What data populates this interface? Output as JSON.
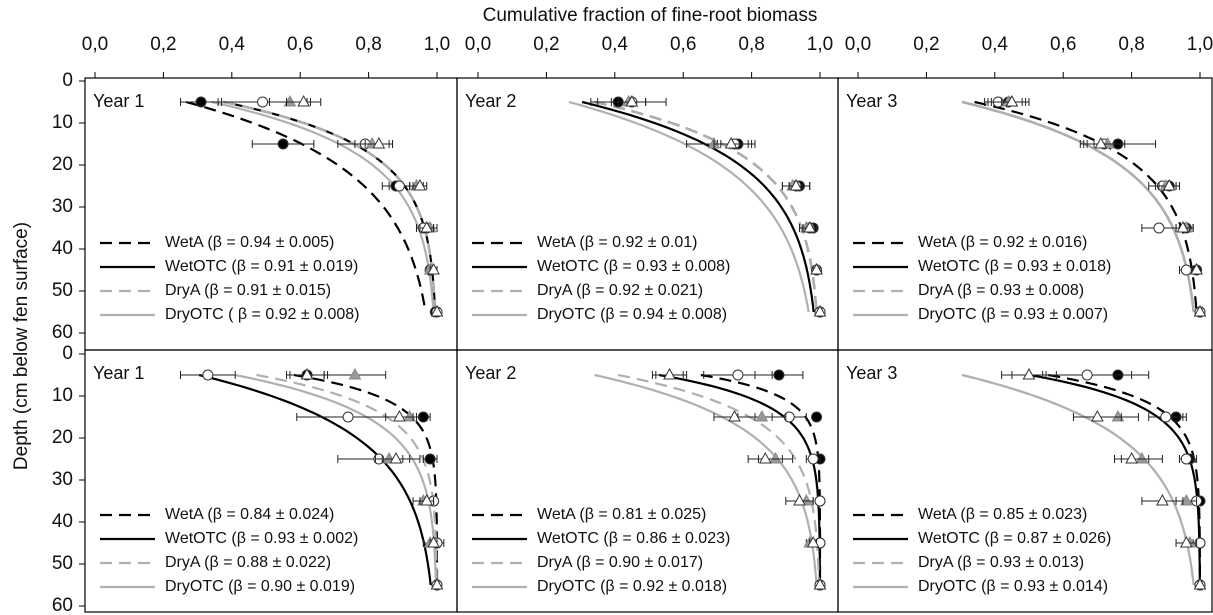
{
  "xlabel": "Cumulative fraction of fine-root biomass",
  "ylabel": "Depth (cm below fen surface)",
  "chart_data": [
    {
      "type": "line",
      "title": "Year 1",
      "depths": [
        5,
        15,
        25,
        35,
        45,
        55
      ],
      "xlim": [
        0,
        1
      ],
      "ylim": [
        0,
        60
      ],
      "xticks": [
        {
          "value": 0,
          "label": "0,0"
        },
        {
          "value": 0.2,
          "label": "0,2"
        },
        {
          "value": 0.4,
          "label": "0,4"
        },
        {
          "value": 0.6,
          "label": "0,6"
        },
        {
          "value": 0.8,
          "label": "0,8"
        },
        {
          "value": 1,
          "label": "1,0"
        }
      ],
      "yticks": [
        0,
        10,
        20,
        30,
        40,
        50,
        60
      ],
      "series": [
        {
          "name": "WetA (β = 0.94 ± 0.005)",
          "color": "#000000",
          "dash": true,
          "marker": "circle-filled",
          "beta": 0.94,
          "beta_err": 0.005,
          "values": [
            0.31,
            0.55,
            0.88,
            0.97,
            0.98,
            0.995
          ],
          "errors": [
            0.06,
            0.09,
            0.04,
            0.03,
            0.01,
            0.005
          ]
        },
        {
          "name": "WetOTC (β = 0.91 ± 0.019)",
          "color": "#000000",
          "dash": false,
          "marker": "circle-open",
          "beta": 0.91,
          "beta_err": 0.019,
          "values": [
            0.49,
            0.79,
            0.89,
            0.96,
            0.98,
            1.0
          ],
          "errors": [
            0.13,
            0.08,
            0.03,
            0.02,
            0.01,
            0.005
          ]
        },
        {
          "name": "DryA (β = 0.91 ± 0.015)",
          "color": "#b0b0b0",
          "dash": true,
          "marker": "triangle-filled",
          "beta": 0.91,
          "beta_err": 0.015,
          "values": [
            0.57,
            0.81,
            0.94,
            0.98,
            0.98,
            1.0
          ],
          "errors": [
            0.06,
            0.05,
            0.02,
            0.01,
            0.01,
            0.005
          ]
        },
        {
          "name": "DryOTC ( β = 0.92 ± 0.008)",
          "color": "#b0b0b0",
          "dash": false,
          "marker": "triangle-open",
          "beta": 0.92,
          "beta_err": 0.008,
          "values": [
            0.61,
            0.83,
            0.95,
            0.97,
            0.99,
            1.0
          ],
          "errors": [
            0.05,
            0.04,
            0.02,
            0.02,
            0.01,
            0.005
          ]
        }
      ]
    },
    {
      "type": "line",
      "title": "Year 2",
      "depths": [
        5,
        15,
        25,
        35,
        45,
        55
      ],
      "xlim": [
        0,
        1
      ],
      "ylim": [
        0,
        60
      ],
      "xticks": [
        {
          "value": 0,
          "label": "0,0"
        },
        {
          "value": 0.2,
          "label": "0,2"
        },
        {
          "value": 0.4,
          "label": "0,4"
        },
        {
          "value": 0.6,
          "label": "0,6"
        },
        {
          "value": 0.8,
          "label": "0,8"
        },
        {
          "value": 1,
          "label": "1,0"
        }
      ],
      "series": [
        {
          "name": "WetA (β = 0.92 ± 0.01)",
          "color": "#000000",
          "dash": true,
          "marker": "circle-filled",
          "beta": 0.92,
          "beta_err": 0.01,
          "values": [
            0.41,
            0.76,
            0.94,
            0.98,
            0.99,
            1.0
          ],
          "errors": [
            0.08,
            0.05,
            0.03,
            0.01,
            0.01,
            0.005
          ]
        },
        {
          "name": "WetOTC (β = 0.93 ± 0.008)",
          "color": "#000000",
          "dash": false,
          "marker": "circle-open",
          "beta": 0.93,
          "beta_err": 0.008,
          "values": [
            0.45,
            0.75,
            0.93,
            0.97,
            0.99,
            1.0
          ],
          "errors": [
            0.1,
            0.05,
            0.04,
            0.02,
            0.01,
            0.005
          ]
        },
        {
          "name": "DryA (β = 0.92 ± 0.021)",
          "color": "#b0b0b0",
          "dash": true,
          "marker": "triangle-filled",
          "beta": 0.92,
          "beta_err": 0.021,
          "values": [
            0.44,
            0.69,
            0.92,
            0.96,
            0.99,
            1.0
          ],
          "errors": [
            0.05,
            0.08,
            0.03,
            0.02,
            0.01,
            0.005
          ]
        },
        {
          "name": "DryOTC (β = 0.94 ± 0.008)",
          "color": "#b0b0b0",
          "dash": false,
          "marker": "triangle-open",
          "beta": 0.94,
          "beta_err": 0.008,
          "values": [
            0.45,
            0.74,
            0.93,
            0.97,
            0.99,
            1.0
          ],
          "errors": [
            0.04,
            0.05,
            0.02,
            0.02,
            0.01,
            0.005
          ]
        }
      ]
    },
    {
      "type": "line",
      "title": "Year 3",
      "depths": [
        5,
        15,
        25,
        35,
        45,
        55
      ],
      "xlim": [
        0,
        1
      ],
      "ylim": [
        0,
        60
      ],
      "xticks": [
        {
          "value": 0,
          "label": "0,0"
        },
        {
          "value": 0.2,
          "label": "0,2"
        },
        {
          "value": 0.4,
          "label": "0,4"
        },
        {
          "value": 0.6,
          "label": "0,6"
        },
        {
          "value": 0.8,
          "label": "0,8"
        },
        {
          "value": 1,
          "label": "1,0"
        }
      ],
      "series": [
        {
          "name": "WetA (β = 0.92 ± 0.016)",
          "color": "#000000",
          "dash": true,
          "marker": "circle-filled",
          "beta": 0.92,
          "beta_err": 0.016,
          "values": [
            0.44,
            0.76,
            0.91,
            0.96,
            0.99,
            1.0
          ],
          "errors": [
            0.06,
            0.11,
            0.03,
            0.02,
            0.01,
            0.005
          ]
        },
        {
          "name": "WetOTC (β = 0.93 ± 0.018)",
          "color": "#000000",
          "dash": false,
          "marker": "circle-open",
          "beta": 0.93,
          "beta_err": 0.018,
          "values": [
            0.41,
            0.72,
            0.89,
            0.88,
            0.96,
            1.0
          ],
          "errors": [
            0.04,
            0.06,
            0.04,
            0.05,
            0.02,
            0.005
          ]
        },
        {
          "name": "DryA (β = 0.93 ± 0.008)",
          "color": "#b0b0b0",
          "dash": true,
          "marker": "triangle-filled",
          "beta": 0.93,
          "beta_err": 0.008,
          "values": [
            0.44,
            0.73,
            0.9,
            0.96,
            0.99,
            1.0
          ],
          "errors": [
            0.05,
            0.04,
            0.03,
            0.02,
            0.01,
            0.005
          ]
        },
        {
          "name": "DryOTC (β = 0.93 ± 0.007)",
          "color": "#b0b0b0",
          "dash": false,
          "marker": "triangle-open",
          "beta": 0.93,
          "beta_err": 0.007,
          "values": [
            0.45,
            0.71,
            0.91,
            0.95,
            0.99,
            1.0
          ],
          "errors": [
            0.03,
            0.04,
            0.03,
            0.02,
            0.01,
            0.005
          ]
        }
      ]
    },
    {
      "type": "line",
      "title": "Year 1",
      "depths": [
        5,
        15,
        25,
        35,
        45,
        55
      ],
      "xlim": [
        0,
        1
      ],
      "ylim": [
        0,
        60
      ],
      "yticks": [
        0,
        10,
        20,
        30,
        40,
        50,
        60
      ],
      "series": [
        {
          "name": "WetA (β = 0.84 ± 0.024)",
          "color": "#000000",
          "dash": true,
          "marker": "circle-filled",
          "beta": 0.84,
          "beta_err": 0.024,
          "values": [
            0.62,
            0.96,
            0.98,
            0.99,
            1.0,
            1.0
          ],
          "errors": [
            0.05,
            0.02,
            0.02,
            0.01,
            0.01,
            0.005
          ]
        },
        {
          "name": "WetOTC (β = 0.93 ± 0.002)",
          "color": "#000000",
          "dash": false,
          "marker": "circle-open",
          "beta": 0.93,
          "beta_err": 0.002,
          "values": [
            0.33,
            0.74,
            0.83,
            0.99,
            1.0,
            1.0
          ],
          "errors": [
            0.08,
            0.15,
            0.12,
            0.01,
            0.02,
            0.005
          ]
        },
        {
          "name": "DryA (β = 0.88 ± 0.022)",
          "color": "#b0b0b0",
          "dash": true,
          "marker": "triangle-filled",
          "beta": 0.88,
          "beta_err": 0.022,
          "values": [
            0.76,
            0.92,
            0.86,
            0.96,
            0.98,
            1.0
          ],
          "errors": [
            0.09,
            0.03,
            0.04,
            0.03,
            0.02,
            0.005
          ]
        },
        {
          "name": "DryOTC (β = 0.90 ± 0.019)",
          "color": "#b0b0b0",
          "dash": false,
          "marker": "triangle-open",
          "beta": 0.9,
          "beta_err": 0.019,
          "values": [
            0.62,
            0.89,
            0.88,
            0.97,
            0.99,
            1.0
          ],
          "errors": [
            0.06,
            0.04,
            0.04,
            0.02,
            0.01,
            0.005
          ]
        }
      ]
    },
    {
      "type": "line",
      "title": "Year 2",
      "depths": [
        5,
        15,
        25,
        35,
        45,
        55
      ],
      "xlim": [
        0,
        1
      ],
      "ylim": [
        0,
        60
      ],
      "series": [
        {
          "name": "WetA (β = 0.81 ± 0.025)",
          "color": "#000000",
          "dash": true,
          "marker": "circle-filled",
          "beta": 0.81,
          "beta_err": 0.025,
          "values": [
            0.88,
            0.99,
            1.0,
            1.0,
            1.0,
            1.0
          ],
          "errors": [
            0.07,
            0.01,
            0.005,
            0.005,
            0.005,
            0.005
          ]
        },
        {
          "name": "WetOTC (β = 0.86 ± 0.023)",
          "color": "#000000",
          "dash": false,
          "marker": "circle-open",
          "beta": 0.86,
          "beta_err": 0.023,
          "values": [
            0.76,
            0.91,
            0.98,
            1.0,
            1.0,
            1.0
          ],
          "errors": [
            0.1,
            0.05,
            0.02,
            0.005,
            0.005,
            0.005
          ]
        },
        {
          "name": "DryA (β = 0.90 ± 0.017)",
          "color": "#b0b0b0",
          "dash": true,
          "marker": "triangle-filled",
          "beta": 0.9,
          "beta_err": 0.017,
          "values": [
            0.56,
            0.83,
            0.87,
            0.96,
            0.97,
            1.0
          ],
          "errors": [
            0.05,
            0.07,
            0.05,
            0.02,
            0.01,
            0.005
          ]
        },
        {
          "name": "DryOTC (β = 0.92 ± 0.018)",
          "color": "#b0b0b0",
          "dash": false,
          "marker": "triangle-open",
          "beta": 0.92,
          "beta_err": 0.018,
          "values": [
            0.56,
            0.75,
            0.84,
            0.94,
            0.98,
            1.0
          ],
          "errors": [
            0.04,
            0.06,
            0.05,
            0.04,
            0.01,
            0.005
          ]
        }
      ]
    },
    {
      "type": "line",
      "title": "Year 3",
      "depths": [
        5,
        15,
        25,
        35,
        45,
        55
      ],
      "xlim": [
        0,
        1
      ],
      "ylim": [
        0,
        60
      ],
      "series": [
        {
          "name": "WetA (β = 0.85 ± 0.023)",
          "color": "#000000",
          "dash": true,
          "marker": "circle-filled",
          "beta": 0.85,
          "beta_err": 0.023,
          "values": [
            0.76,
            0.93,
            0.97,
            1.0,
            1.0,
            1.0
          ],
          "errors": [
            0.09,
            0.03,
            0.02,
            0.01,
            0.005,
            0.005
          ]
        },
        {
          "name": "WetOTC (β = 0.87 ± 0.026)",
          "color": "#000000",
          "dash": false,
          "marker": "circle-open",
          "beta": 0.87,
          "beta_err": 0.026,
          "values": [
            0.67,
            0.9,
            0.96,
            0.99,
            1.0,
            1.0
          ],
          "errors": [
            0.13,
            0.05,
            0.02,
            0.01,
            0.01,
            0.005
          ]
        },
        {
          "name": "DryA (β = 0.93 ± 0.013)",
          "color": "#b0b0b0",
          "dash": true,
          "marker": "triangle-filled",
          "beta": 0.93,
          "beta_err": 0.013,
          "values": [
            0.5,
            0.76,
            0.83,
            0.96,
            0.97,
            1.0
          ],
          "errors": [
            0.08,
            0.06,
            0.06,
            0.03,
            0.01,
            0.005
          ]
        },
        {
          "name": "DryOTC (β = 0.93 ± 0.014)",
          "color": "#b0b0b0",
          "dash": false,
          "marker": "triangle-open",
          "beta": 0.93,
          "beta_err": 0.014,
          "values": [
            0.5,
            0.7,
            0.8,
            0.89,
            0.96,
            1.0
          ],
          "errors": [
            0.05,
            0.07,
            0.05,
            0.06,
            0.03,
            0.005
          ]
        }
      ]
    }
  ]
}
